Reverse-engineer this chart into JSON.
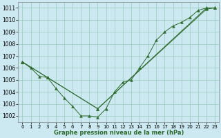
{
  "xlabel": "Graphe pression niveau de la mer (hPa)",
  "ylim": [
    1001.5,
    1011.5
  ],
  "xlim": [
    -0.5,
    23.5
  ],
  "yticks": [
    1002,
    1003,
    1004,
    1005,
    1006,
    1007,
    1008,
    1009,
    1010,
    1011
  ],
  "xticks": [
    0,
    1,
    2,
    3,
    4,
    5,
    6,
    7,
    8,
    9,
    10,
    11,
    12,
    13,
    14,
    15,
    16,
    17,
    18,
    19,
    20,
    21,
    22,
    23
  ],
  "bg_color": "#cce8f0",
  "line_color": "#2d6a2d",
  "grid_color": "#99ccbb",
  "y_main": [
    1006.5,
    1006.0,
    1005.3,
    1005.2,
    1004.3,
    1003.5,
    1002.8,
    1002.0,
    1002.0,
    1001.9,
    1002.6,
    1004.0,
    1004.8,
    1005.0,
    1006.0,
    1007.0,
    1008.3,
    1009.0,
    1009.5,
    1009.8,
    1010.2,
    1010.8,
    1011.0,
    1011.0
  ],
  "anchor_line2_x": [
    0,
    3,
    9,
    22,
    23
  ],
  "anchor_line2_y": [
    1006.5,
    1005.2,
    1002.6,
    1011.0,
    1011.0
  ],
  "anchor_line3_x": [
    0,
    3,
    9,
    22,
    23
  ],
  "anchor_line3_y": [
    1006.5,
    1005.2,
    1002.6,
    1010.9,
    1011.0
  ],
  "tick_fontsize": 5.5,
  "xlabel_fontsize": 6.0
}
